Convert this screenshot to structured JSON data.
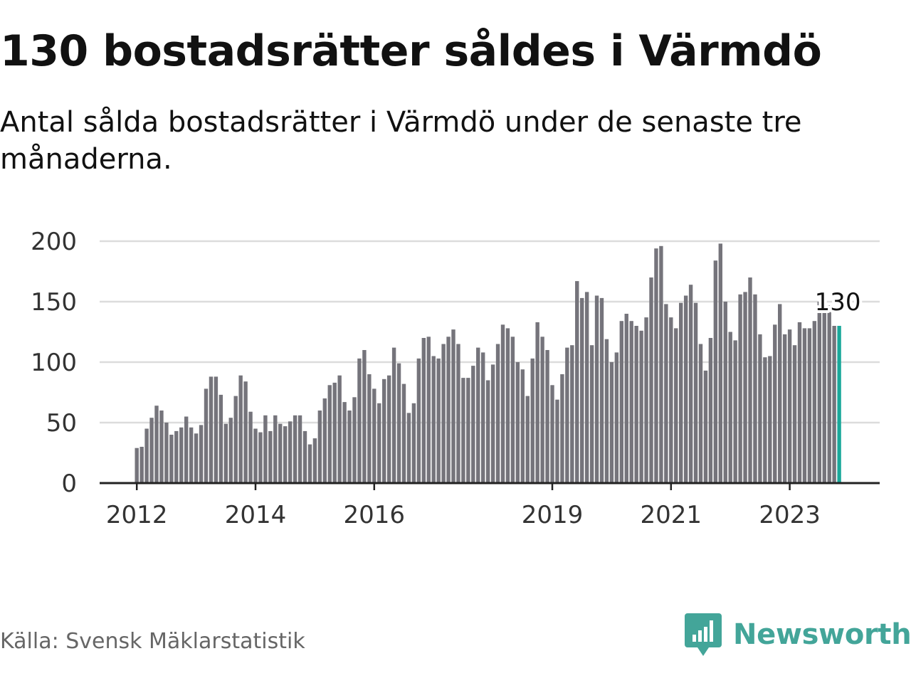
{
  "header": {
    "title": "130 bostadsrätter såldes i Värmdö",
    "subtitle": "Antal sålda bostadsrätter i Värmdö under de senaste tre månaderna."
  },
  "footer": {
    "source": "Källa: Svensk Mäklarstatistik",
    "brand": "Newsworthy"
  },
  "colors": {
    "bar": "#75747b",
    "highlight": "#1aa89a",
    "grid": "#dcdcdc",
    "axis": "#222222",
    "brand": "#43a599"
  },
  "chart_data": {
    "type": "bar",
    "title": "130 bostadsrätter såldes i Värmdö",
    "subtitle": "Antal sålda bostadsrätter i Värmdö under de senaste tre månaderna.",
    "xlabel": "",
    "ylabel": "",
    "ylim": [
      0,
      200
    ],
    "yticks": [
      0,
      50,
      100,
      150,
      200
    ],
    "grid": true,
    "start": "2012-01",
    "x_ticks": [
      {
        "label": "2012",
        "index": 0
      },
      {
        "label": "2014",
        "index": 24
      },
      {
        "label": "2016",
        "index": 48
      },
      {
        "label": "2019",
        "index": 84
      },
      {
        "label": "2021",
        "index": 108
      },
      {
        "label": "2023",
        "index": 132
      }
    ],
    "highlight_index": 142,
    "annotation": {
      "label": "130",
      "index": 142,
      "value": 130
    },
    "values": [
      29,
      30,
      45,
      54,
      64,
      60,
      50,
      40,
      43,
      46,
      55,
      46,
      41,
      48,
      78,
      88,
      88,
      73,
      49,
      54,
      72,
      89,
      84,
      59,
      45,
      42,
      56,
      43,
      56,
      49,
      47,
      51,
      56,
      56,
      43,
      32,
      37,
      60,
      70,
      81,
      83,
      89,
      67,
      60,
      71,
      103,
      110,
      90,
      78,
      66,
      86,
      89,
      112,
      99,
      82,
      58,
      66,
      103,
      120,
      121,
      105,
      103,
      115,
      121,
      127,
      115,
      87,
      87,
      97,
      112,
      108,
      85,
      98,
      115,
      131,
      128,
      121,
      100,
      94,
      72,
      103,
      133,
      121,
      110,
      81,
      69,
      90,
      112,
      114,
      167,
      153,
      158,
      114,
      155,
      153,
      119,
      100,
      108,
      134,
      140,
      134,
      130,
      126,
      137,
      170,
      194,
      196,
      148,
      137,
      128,
      149,
      155,
      164,
      149,
      115,
      93,
      120,
      184,
      198,
      150,
      125,
      118,
      156,
      158,
      170,
      156,
      123,
      104,
      105,
      131,
      148,
      123,
      127,
      114,
      133,
      128,
      128,
      134,
      150,
      145,
      147,
      130,
      130
    ]
  }
}
